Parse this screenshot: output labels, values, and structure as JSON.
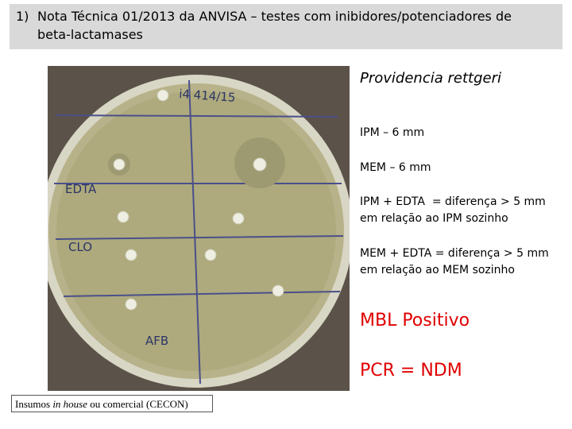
{
  "header": {
    "number": "1)",
    "title_lines": [
      "Nota Técnica 01/2013 da ANVISA – testes com inibidores/potenciadores de",
      "beta-lactamases"
    ]
  },
  "photo": {
    "labels": [
      "i4 414/15",
      "EDTA",
      "CLO",
      "AFB"
    ]
  },
  "caption": {
    "parts": [
      "Insumos",
      "in house",
      "ou comercial (CECON)"
    ]
  },
  "organism": "Providencia rettgeri",
  "results": [
    {
      "lines": [
        "IPM – 6 mm"
      ]
    },
    {
      "lines": [
        "MEM – 6 mm"
      ]
    },
    {
      "lines": [
        "IPM + EDTA  = diferença > 5 mm",
        "em relação ao IPM sozinho"
      ]
    },
    {
      "lines": [
        "MEM + EDTA = diferença > 5 mm",
        "em relação ao MEM sozinho"
      ]
    }
  ],
  "conclusions": [
    "MBL Positivo",
    "PCR = NDM"
  ]
}
